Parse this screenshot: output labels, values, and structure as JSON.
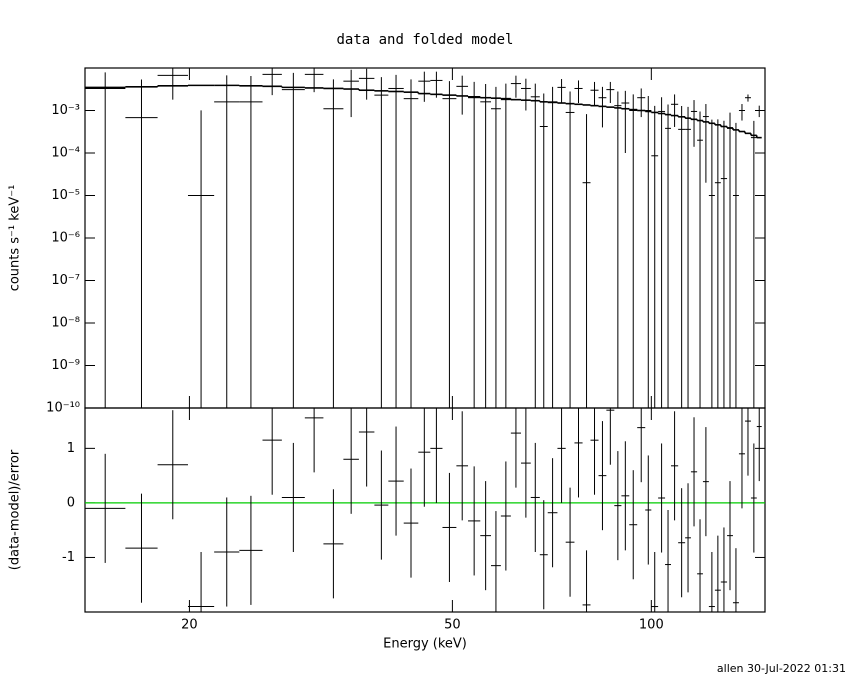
{
  "chart_data": {
    "type": "errorbar",
    "title": "data and folded model",
    "xlabel": "Energy (keV)",
    "footer": "allen 30-Jul-2022 01:31",
    "log_x": true,
    "xlim": [
      13.9,
      148.6
    ],
    "xticks": [
      20,
      50,
      100
    ],
    "bins": [
      13.9,
      16.0,
      17.9,
      19.9,
      21.8,
      23.8,
      25.8,
      27.6,
      29.9,
      31.9,
      34.2,
      36.1,
      38.1,
      40.0,
      42.2,
      44.4,
      46.3,
      48.3,
      50.7,
      52.8,
      55.1,
      57.2,
      59.2,
      61.3,
      63.5,
      65.7,
      67.8,
      69.7,
      72.1,
      74.2,
      76.5,
      78.7,
      80.9,
      83.2,
      85.5,
      87.9,
      90.1,
      92.6,
      95.2,
      97.9,
      100.0,
      102.4,
      104.9,
      107.1,
      109.8,
      112.5,
      114.8,
      117.3,
      119.7,
      122.2,
      124.8,
      127.4,
      130.2,
      132.9,
      135.7,
      138.6,
      141.5,
      144.4,
      146.9
    ],
    "data": {
      "ylabel": "counts s⁻¹ keV⁻¹",
      "log_y": true,
      "color": "#000000",
      "model_color": "#000000",
      "ylim": [
        1e-10,
        0.01
      ],
      "yticks": [
        {
          "value": 1e-10,
          "label": "10⁻¹⁰"
        },
        {
          "value": 1e-09,
          "label": "10⁻⁹"
        },
        {
          "value": 1e-08,
          "label": "10⁻⁸"
        },
        {
          "value": 1e-07,
          "label": "10⁻⁷"
        },
        {
          "value": 1e-06,
          "label": "10⁻⁶"
        },
        {
          "value": 1e-05,
          "label": "10⁻⁵"
        },
        {
          "value": 0.0001,
          "label": "10⁻⁴"
        },
        {
          "value": 0.001,
          "label": "10⁻³"
        }
      ],
      "values": [
        0.0033,
        0.00068,
        0.0067,
        1e-05,
        0.0016,
        0.0016,
        0.0071,
        0.0031,
        0.0071,
        0.0011,
        0.0049,
        0.0057,
        0.0023,
        0.0033,
        0.0019,
        0.0049,
        0.0051,
        0.0019,
        0.0037,
        0.002,
        0.0016,
        0.0011,
        0.0018,
        0.0043,
        0.0033,
        0.0021,
        0.00042,
        0.0016,
        0.0035,
        0.0009,
        0.0033,
        2e-05,
        0.003,
        0.002,
        0.0031,
        0.0013,
        0.0015,
        0.001,
        0.002,
        0.001,
        8.6e-05,
        0.00095,
        0.00038,
        0.0014,
        0.00036,
        0.00036,
        0.00095,
        0.0002,
        0.00072,
        1e-05,
        2e-05,
        2.5e-05,
        0.00038,
        1e-05,
        0.001,
        0.002,
        0.00023,
        0.001
      ],
      "errors": [
        0.0046,
        0.0047,
        0.0049,
        0.001,
        0.0051,
        0.0049,
        0.0048,
        0.0046,
        0.0044,
        0.0043,
        0.0042,
        0.0039,
        0.0038,
        0.0036,
        0.0035,
        0.0033,
        0.0031,
        0.003,
        0.0029,
        0.0027,
        0.0026,
        0.0025,
        0.0025,
        0.0023,
        0.0023,
        0.0022,
        0.0021,
        0.002,
        0.002,
        0.0019,
        0.0018,
        0.0008,
        0.0017,
        0.0016,
        0.0016,
        0.0015,
        0.0014,
        0.0014,
        0.0013,
        0.0012,
        0.0012,
        0.0011,
        0.001,
        0.00099,
        0.00092,
        0.00086,
        0.00081,
        0.00075,
        0.0007,
        0.0006,
        0.0006,
        0.00055,
        0.00051,
        0.0005,
        0.00042,
        0.00038,
        0.00034,
        0.0003
      ],
      "model": [
        0.0035,
        0.0036,
        0.0038,
        0.0039,
        0.0039,
        0.0038,
        0.0037,
        0.0035,
        0.0034,
        0.0033,
        0.0032,
        0.003,
        0.0029,
        0.0028,
        0.0027,
        0.0025,
        0.0024,
        0.0023,
        0.0022,
        0.0021,
        0.002,
        0.00195,
        0.0019,
        0.0018,
        0.00175,
        0.0017,
        0.0016,
        0.00155,
        0.0015,
        0.00145,
        0.0014,
        0.00135,
        0.0013,
        0.00125,
        0.0012,
        0.00115,
        0.0011,
        0.00105,
        0.001,
        0.00095,
        0.0009,
        0.00085,
        0.0008,
        0.00076,
        0.00071,
        0.00066,
        0.00062,
        0.00058,
        0.00054,
        0.0005,
        0.00046,
        0.00042,
        0.00039,
        0.00035,
        0.00032,
        0.00029,
        0.00026,
        0.00023
      ]
    },
    "residuals": {
      "ylabel": "(data-model)/error",
      "color": "#000000",
      "zero_line_color": "#00cc00",
      "ylim": [
        -2,
        1.74
      ],
      "yticks": [
        -1,
        0,
        1
      ],
      "values": [
        -0.1,
        -0.83,
        0.7,
        -1.9,
        -0.9,
        -0.87,
        1.15,
        0.1,
        1.56,
        -0.75,
        0.8,
        1.3,
        -0.04,
        0.4,
        -0.37,
        0.93,
        1.0,
        -0.45,
        0.68,
        -0.33,
        -0.6,
        -1.15,
        -0.24,
        1.28,
        0.73,
        0.1,
        -0.95,
        -0.18,
        1.0,
        -0.72,
        1.1,
        -1.87,
        1.15,
        0.5,
        1.7,
        -0.05,
        0.13,
        -0.4,
        1.38,
        -0.13,
        -1.9,
        0.09,
        -1.13,
        0.68,
        -0.73,
        -0.64,
        0.57,
        -1.3,
        0.39,
        -1.9,
        -1.6,
        -1.45,
        -0.6,
        -1.83,
        0.9,
        1.5,
        0.09,
        1.4
      ],
      "errors": [
        1,
        1,
        1,
        1,
        1,
        1,
        1,
        1,
        1,
        1,
        1,
        1,
        1,
        1,
        1,
        1,
        1,
        1,
        1,
        1,
        1,
        1,
        1,
        1,
        1,
        1,
        1,
        1,
        1,
        1,
        1,
        1,
        1,
        1,
        1,
        1,
        1,
        1,
        1,
        1,
        1,
        1,
        1,
        1,
        1,
        1,
        1,
        1,
        1,
        1,
        1,
        1,
        1,
        1,
        1,
        1,
        1,
        1
      ]
    }
  }
}
